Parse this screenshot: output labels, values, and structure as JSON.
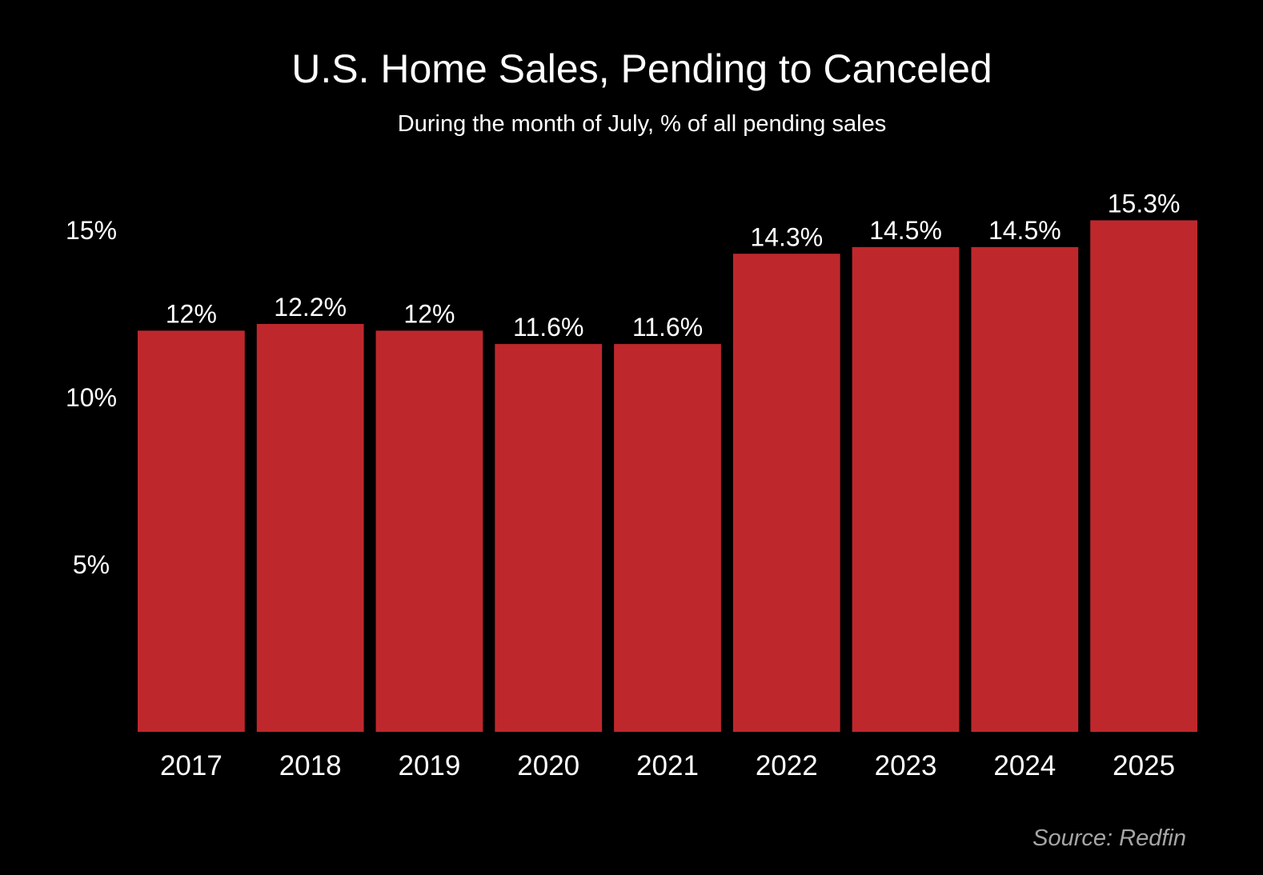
{
  "title": "U.S. Home Sales, Pending to Canceled",
  "subtitle": "During the month of July, % of all pending sales",
  "source": "Source: Redfin",
  "colors": {
    "background": "#000000",
    "bar": "#be282d",
    "text": "#ffffff",
    "source_text": "#a6a6a6"
  },
  "chart_data": {
    "type": "bar",
    "title": "U.S. Home Sales, Pending to Canceled",
    "subtitle": "During the month of July, % of all pending sales",
    "xlabel": "",
    "ylabel": "",
    "categories": [
      "2017",
      "2018",
      "2019",
      "2020",
      "2021",
      "2022",
      "2023",
      "2024",
      "2025"
    ],
    "values": [
      12,
      12.2,
      12,
      11.6,
      11.6,
      14.3,
      14.5,
      14.5,
      15.3
    ],
    "value_labels": [
      "12%",
      "12.2%",
      "12%",
      "11.6%",
      "11.6%",
      "14.3%",
      "14.5%",
      "14.5%",
      "15.3%"
    ],
    "ylim": [
      0,
      15.3
    ],
    "yticks": [
      5,
      10,
      15
    ],
    "ytick_labels": [
      "5%",
      "10%",
      "15%"
    ],
    "grid": false,
    "legend": "none"
  }
}
